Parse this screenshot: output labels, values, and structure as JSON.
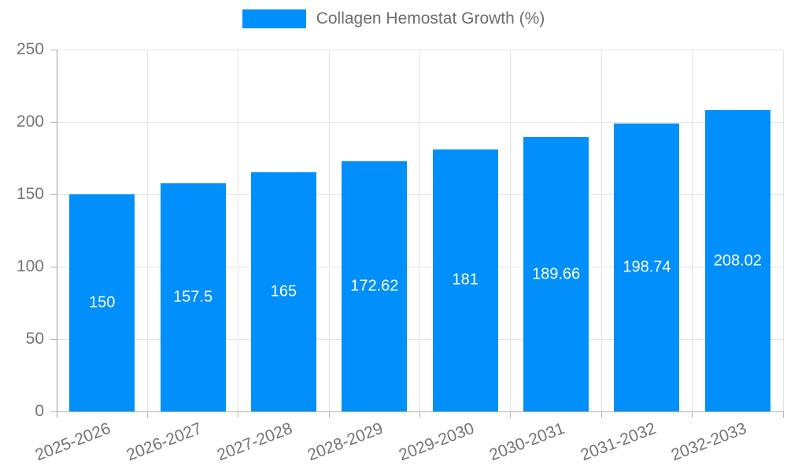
{
  "legend": {
    "label": "Collagen Hemostat Growth (%)"
  },
  "colors": {
    "bar": "#008FFB",
    "legend_text": "#6e6e6e",
    "axis_text": "#757575",
    "data_label": "#ffffff",
    "gridline": "#e4e4e4",
    "axis_line": "#b3b3b3"
  },
  "chart_data": {
    "type": "bar",
    "title": "Collagen Hemostat Growth (%)",
    "categories": [
      "2025-2026",
      "2026-2027",
      "2027-2028",
      "2028-2029",
      "2029-2030",
      "2030-2031",
      "2031-2032",
      "2032-2033"
    ],
    "values": [
      150,
      157.5,
      165,
      172.62,
      181,
      189.66,
      198.74,
      208.02
    ],
    "value_labels": [
      "150",
      "157.5",
      "165",
      "172.62",
      "181",
      "189.66",
      "198.74",
      "208.02"
    ],
    "xlabel": "",
    "ylabel": "",
    "ylim": [
      0,
      250
    ],
    "yticks": [
      0,
      50,
      100,
      150,
      200,
      250
    ],
    "grid": true,
    "legend_position": "top",
    "bar_color": "#008FFB",
    "data_labels_inside": true,
    "x_label_rotation_deg": -21
  }
}
